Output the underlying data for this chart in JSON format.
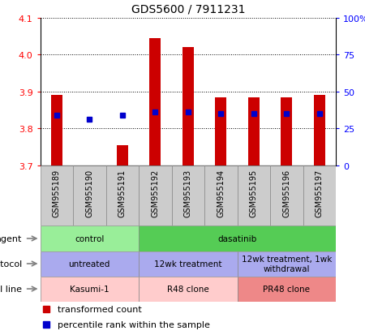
{
  "title": "GDS5600 / 7911231",
  "samples": [
    "GSM955189",
    "GSM955190",
    "GSM955191",
    "GSM955192",
    "GSM955193",
    "GSM955194",
    "GSM955195",
    "GSM955196",
    "GSM955197"
  ],
  "transformed_counts": [
    3.89,
    3.7,
    3.755,
    4.045,
    4.02,
    3.885,
    3.885,
    3.885,
    3.89
  ],
  "percentile_ranks": [
    3.835,
    3.825,
    3.835,
    3.845,
    3.845,
    3.84,
    3.84,
    3.84,
    3.84
  ],
  "ylim": [
    3.7,
    4.1
  ],
  "yticks_left": [
    3.7,
    3.8,
    3.9,
    4.0,
    4.1
  ],
  "yticks_right_vals": [
    "0",
    "25",
    "50",
    "75",
    "100%"
  ],
  "bar_color": "#cc0000",
  "dot_color": "#0000cc",
  "bar_base": 3.7,
  "agent_groups": [
    {
      "label": "control",
      "start": 0,
      "end": 3,
      "color": "#99ee99"
    },
    {
      "label": "dasatinib",
      "start": 3,
      "end": 9,
      "color": "#55cc55"
    }
  ],
  "protocol_groups": [
    {
      "label": "untreated",
      "start": 0,
      "end": 3,
      "color": "#aaaaee"
    },
    {
      "label": "12wk treatment",
      "start": 3,
      "end": 6,
      "color": "#aaaaee"
    },
    {
      "label": "12wk treatment, 1wk\nwithdrawal",
      "start": 6,
      "end": 9,
      "color": "#aaaaee"
    }
  ],
  "cellline_groups": [
    {
      "label": "Kasumi-1",
      "start": 0,
      "end": 3,
      "color": "#ffcccc"
    },
    {
      "label": "R48 clone",
      "start": 3,
      "end": 6,
      "color": "#ffcccc"
    },
    {
      "label": "PR48 clone",
      "start": 6,
      "end": 9,
      "color": "#ee8888"
    }
  ],
  "xlabel_bg": "#cccccc",
  "legend_red": "transformed count",
  "legend_blue": "percentile rank within the sample"
}
